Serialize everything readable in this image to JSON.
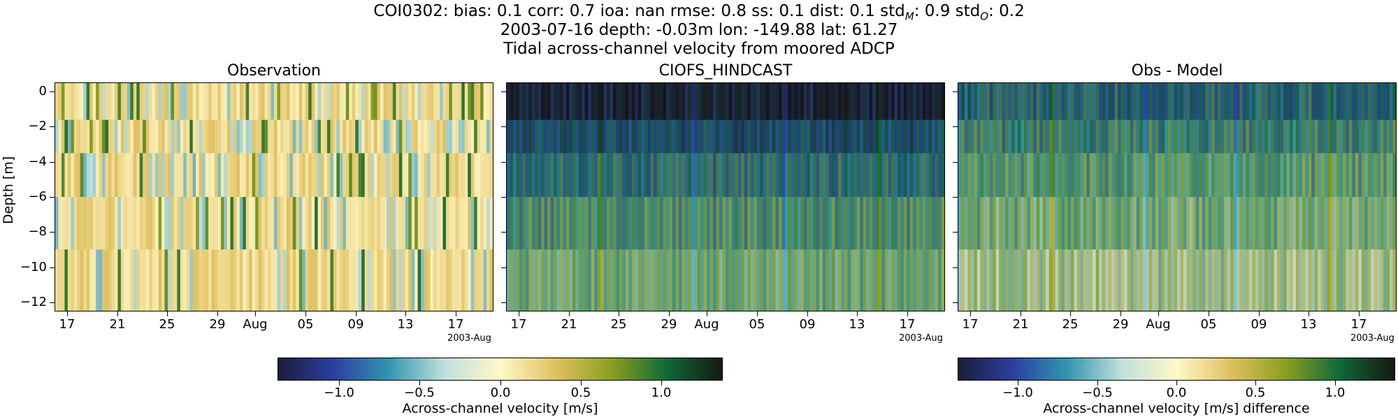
{
  "header": {
    "line1": "COI0302: bias: 0.1  corr: 0.7  ioa: nan  rmse: 0.8  ss: 0.1  dist: 0.1  std",
    "std_m_sub": "M",
    "line1_mid": ": 0.9  std",
    "std_o_sub": "O",
    "line1_end": ": 0.2",
    "line2": "2003-07-16 depth: -0.03m lon: -149.88 lat: 61.27",
    "line3": "Tidal across-channel velocity from moored ADCP"
  },
  "colormap": [
    "#1c1c3a",
    "#2b3fa0",
    "#3296b0",
    "#c0e0dc",
    "#fff8c8",
    "#e0c060",
    "#8aa020",
    "#106838",
    "#141a12"
  ],
  "chart_data": [
    {
      "type": "heatmap",
      "title": "Observation",
      "ylabel": "Depth [m]",
      "ylim": [
        -12.5,
        0.5
      ],
      "yticks": [
        "0",
        "−2",
        "−4",
        "−6",
        "−8",
        "−10",
        "−12"
      ],
      "ytick_values": [
        0,
        -2,
        -4,
        -6,
        -8,
        -10,
        -12
      ],
      "xlim": [
        "2003-07-16",
        "2003-08-20"
      ],
      "xticks": [
        "17",
        "21",
        "25",
        "29",
        "Aug",
        "05",
        "09",
        "13",
        "17"
      ],
      "xtick_dates": [
        "2003-07-17",
        "2003-07-21",
        "2003-07-25",
        "2003-07-29",
        "2003-08-01",
        "2003-08-05",
        "2003-08-09",
        "2003-08-13",
        "2003-08-17"
      ],
      "x_offset_label": "2003-Aug",
      "value_range": [
        -0.4,
        0.8
      ],
      "pattern": "mostly pale yellow/cream with thin blue and green stripes"
    },
    {
      "type": "heatmap",
      "title": "CIOFS_HINDCAST",
      "ylim": [
        -12.5,
        0.5
      ],
      "xticks": [
        "17",
        "21",
        "25",
        "29",
        "Aug",
        "05",
        "09",
        "13",
        "17"
      ],
      "xtick_dates": [
        "2003-07-17",
        "2003-07-21",
        "2003-07-25",
        "2003-07-29",
        "2003-08-01",
        "2003-08-05",
        "2003-08-09",
        "2003-08-13",
        "2003-08-17"
      ],
      "x_offset_label": "2003-Aug",
      "value_range": [
        -1.4,
        1.4
      ],
      "pattern": "alternating dark blue and dark green tidal stripes, darker near surface"
    },
    {
      "type": "heatmap",
      "title": "Obs - Model",
      "ylim": [
        -12.5,
        0.5
      ],
      "xticks": [
        "17",
        "21",
        "25",
        "29",
        "Aug",
        "05",
        "09",
        "13",
        "17"
      ],
      "xtick_dates": [
        "2003-07-17",
        "2003-07-21",
        "2003-07-25",
        "2003-07-29",
        "2003-08-01",
        "2003-08-05",
        "2003-08-09",
        "2003-08-13",
        "2003-08-17"
      ],
      "x_offset_label": "2003-Aug",
      "value_range": [
        -1.4,
        1.4
      ],
      "pattern": "alternating blue and green tidal stripes"
    }
  ],
  "colorbars": [
    {
      "label": "Across-channel velocity [m/s]",
      "ticks": [
        "−1.0",
        "−0.5",
        "0.0",
        "0.5",
        "1.0"
      ],
      "tick_values": [
        -1.0,
        -0.5,
        0.0,
        0.5,
        1.0
      ],
      "range": [
        -1.38,
        1.38
      ]
    },
    {
      "label": "Across-channel velocity [m/s] difference",
      "ticks": [
        "−1.0",
        "−0.5",
        "0.0",
        "0.5",
        "1.0"
      ],
      "tick_values": [
        -1.0,
        -0.5,
        0.0,
        0.5,
        1.0
      ],
      "range": [
        -1.38,
        1.38
      ]
    }
  ]
}
